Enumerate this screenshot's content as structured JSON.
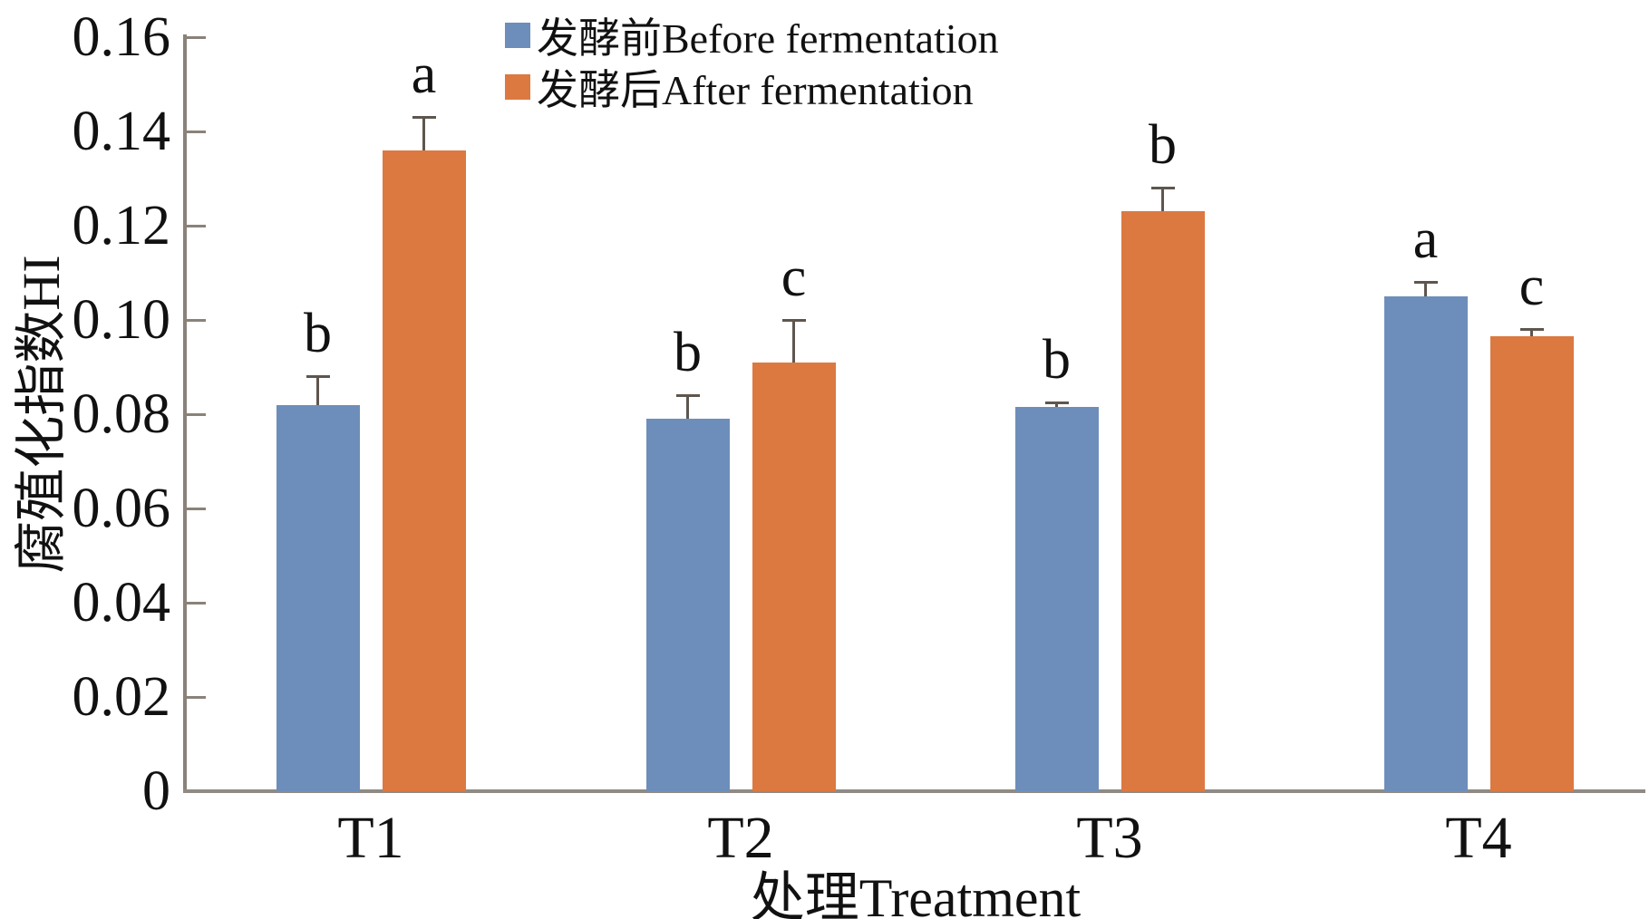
{
  "chart_data": {
    "type": "bar",
    "title": "",
    "categories": [
      "T1",
      "T2",
      "T3",
      "T4"
    ],
    "series": [
      {
        "name": "发酵前Before fermentation",
        "color": "#6D8EBA",
        "values": [
          0.082,
          0.079,
          0.0815,
          0.105
        ],
        "errors": [
          0.006,
          0.005,
          0.001,
          0.003
        ],
        "sig_letters": [
          "b",
          "b",
          "b",
          "a"
        ]
      },
      {
        "name": "发酵后After fermentation",
        "color": "#DC7941",
        "values": [
          0.136,
          0.091,
          0.123,
          0.0965
        ],
        "errors": [
          0.007,
          0.009,
          0.005,
          0.0015
        ],
        "sig_letters": [
          "a",
          "c",
          "b",
          "c"
        ]
      }
    ],
    "xlabel": "处理Treatment",
    "ylabel": "腐殖化指数HI",
    "ylim": [
      0,
      0.16
    ],
    "ytick_step": 0.02,
    "yticks": [
      "0.16",
      "0.14",
      "0.12",
      "0.10",
      "0.08",
      "0.06",
      "0.04",
      "0.02",
      "0"
    ],
    "grid": false,
    "legend_position": "top-center",
    "error_bars": "upper",
    "axis_color": "#8a8278"
  }
}
